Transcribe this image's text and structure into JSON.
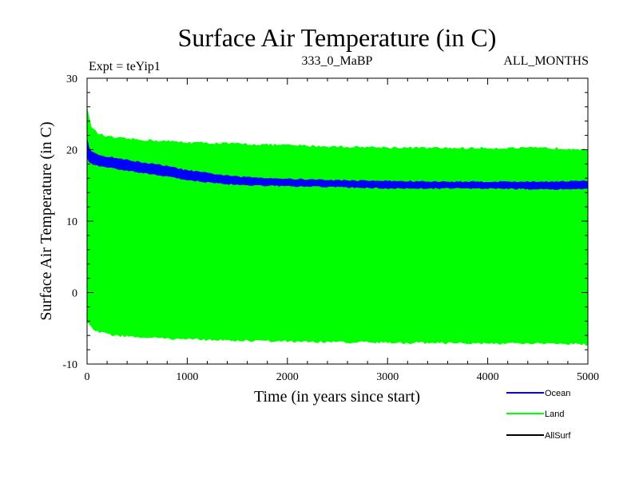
{
  "chart_data": {
    "type": "line",
    "title": "Surface Air Temperature (in C)",
    "subtitle_left": "Expt = teYip1",
    "subtitle_center": "333_0_MaBP",
    "subtitle_right": "ALL_MONTHS",
    "xlabel": "Time (in years since start)",
    "ylabel": "Surface Air Temperature (in C)",
    "xlim": [
      0,
      5000
    ],
    "ylim": [
      -10,
      30
    ],
    "xticks": [
      0,
      1000,
      2000,
      3000,
      4000,
      5000
    ],
    "yticks": [
      -10,
      0,
      10,
      20,
      30
    ],
    "grid": false,
    "legend_position": "bottom-right",
    "series": [
      {
        "name": "Ocean",
        "color": "#0000ff",
        "x": [
          0,
          25,
          50,
          100,
          200,
          300,
          500,
          750,
          1000,
          1250,
          1500,
          2000,
          2500,
          3000,
          3500,
          4000,
          4500,
          5000
        ],
        "upper": [
          21.5,
          20.0,
          19.6,
          19.3,
          19.0,
          18.8,
          18.3,
          17.8,
          17.1,
          16.6,
          16.2,
          15.9,
          15.7,
          15.6,
          15.5,
          15.5,
          15.5,
          15.6
        ],
        "lower": [
          19.0,
          18.2,
          18.0,
          17.8,
          17.6,
          17.3,
          16.9,
          16.4,
          15.8,
          15.4,
          15.1,
          14.9,
          14.8,
          14.6,
          14.6,
          14.6,
          14.5,
          14.5
        ]
      },
      {
        "name": "Land",
        "color": "#00ff00",
        "x": [
          0,
          25,
          50,
          100,
          200,
          300,
          500,
          750,
          1000,
          1500,
          2000,
          2500,
          3000,
          3500,
          4000,
          4500,
          5000
        ],
        "upper": [
          26.0,
          24.0,
          23.0,
          22.3,
          21.8,
          21.6,
          21.4,
          21.2,
          21.0,
          20.8,
          20.6,
          20.4,
          20.3,
          20.2,
          20.2,
          20.2,
          20.1
        ],
        "lower": [
          -4.0,
          -4.6,
          -5.0,
          -5.4,
          -5.8,
          -6.0,
          -6.2,
          -6.4,
          -6.5,
          -6.7,
          -6.8,
          -6.9,
          -7.0,
          -7.0,
          -7.1,
          -7.1,
          -7.2
        ]
      },
      {
        "name": "AllSurf",
        "color": "#000000",
        "x": [],
        "values": []
      }
    ]
  }
}
